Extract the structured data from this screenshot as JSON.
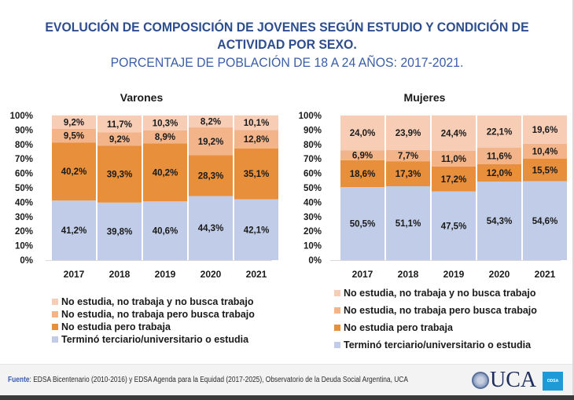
{
  "title": {
    "line1": "EVOLUCIÓN DE COMPOSICIÓN DE JOVENES SEGÚN ESTUDIO Y CONDICIÓN DE",
    "line2": "ACTIVIDAD POR SEXO.",
    "subtitle": "PORCENTAJE DE POBLACIÓN DE 18 A 24 AÑOS: 2017-2021."
  },
  "colors": {
    "estudia": "#c1cde8",
    "trabaja": "#e88f3c",
    "busca": "#f3b48a",
    "no_busca": "#f7cdb6"
  },
  "chart_data": [
    {
      "type": "bar",
      "stacked": true,
      "title": "Varones",
      "categories": [
        "2017",
        "2018",
        "2019",
        "2020",
        "2021"
      ],
      "ylim": [
        0,
        100
      ],
      "yticks": [
        "0%",
        "10%",
        "20%",
        "30%",
        "40%",
        "50%",
        "60%",
        "70%",
        "80%",
        "90%",
        "100%"
      ],
      "xlabel": "",
      "ylabel": "",
      "legend_position": "bottom",
      "series": [
        {
          "name": "Terminó terciario/universitario o estudia",
          "color_key": "estudia",
          "values": [
            41.2,
            39.8,
            40.6,
            44.3,
            42.1
          ],
          "labels": [
            "41,2%",
            "39,8%",
            "40,6%",
            "44,3%",
            "42,1%"
          ]
        },
        {
          "name": "No estudia pero trabaja",
          "color_key": "trabaja",
          "values": [
            40.2,
            39.3,
            40.2,
            28.3,
            35.1
          ],
          "labels": [
            "40,2%",
            "39,3%",
            "40,2%",
            "28,3%",
            "35,1%"
          ]
        },
        {
          "name": "No estudia, no trabaja pero busca trabajo",
          "color_key": "busca",
          "values": [
            9.5,
            9.2,
            8.9,
            19.2,
            12.8
          ],
          "labels": [
            "9,5%",
            "9,2%",
            "8,9%",
            "19,2%",
            "12,8%"
          ]
        },
        {
          "name": "No estudia, no trabaja y no busca trabajo",
          "color_key": "no_busca",
          "values": [
            9.2,
            11.7,
            10.3,
            8.2,
            10.1
          ],
          "labels": [
            "9,2%",
            "11,7%",
            "10,3%",
            "8,2%",
            "10,1%"
          ]
        }
      ]
    },
    {
      "type": "bar",
      "stacked": true,
      "title": "Mujeres",
      "categories": [
        "2017",
        "2018",
        "2019",
        "2020",
        "2021"
      ],
      "ylim": [
        0,
        100
      ],
      "yticks": [
        "0%",
        "10%",
        "20%",
        "30%",
        "40%",
        "50%",
        "60%",
        "70%",
        "80%",
        "90%",
        "100%"
      ],
      "xlabel": "",
      "ylabel": "",
      "legend_position": "bottom",
      "series": [
        {
          "name": "Terminó terciario/universitario o estudia",
          "color_key": "estudia",
          "values": [
            50.5,
            51.1,
            47.5,
            54.3,
            54.6
          ],
          "labels": [
            "50,5%",
            "51,1%",
            "47,5%",
            "54,3%",
            "54,6%"
          ]
        },
        {
          "name": "No estudia pero trabaja",
          "color_key": "trabaja",
          "values": [
            18.6,
            17.3,
            17.2,
            12.0,
            15.5
          ],
          "labels": [
            "18,6%",
            "17,3%",
            "17,2%",
            "12,0%",
            "15,5%"
          ]
        },
        {
          "name": "No estudia, no trabaja pero busca trabajo",
          "color_key": "busca",
          "values": [
            6.9,
            7.7,
            11.0,
            11.6,
            10.4
          ],
          "labels": [
            "6,9%",
            "7,7%",
            "11,0%",
            "11,6%",
            "10,4%"
          ]
        },
        {
          "name": "No estudia, no trabaja y no busca trabajo",
          "color_key": "no_busca",
          "values": [
            24.0,
            23.9,
            24.4,
            22.1,
            19.6
          ],
          "labels": [
            "24,0%",
            "23,9%",
            "24,4%",
            "22,1%",
            "19,6%"
          ]
        }
      ]
    }
  ],
  "legend": [
    {
      "label": "No estudia, no trabaja y no busca trabajo",
      "color_key": "no_busca"
    },
    {
      "label": "No estudia, no trabaja pero busca trabajo",
      "color_key": "busca"
    },
    {
      "label": "No estudia pero trabaja",
      "color_key": "trabaja"
    },
    {
      "label": "Terminó terciario/universitario o estudia",
      "color_key": "estudia"
    }
  ],
  "footer": {
    "source_label": "Fuente",
    "source_text": ": EDSA Bicentenario (2010-2016) y EDSA Agenda para la Equidad (2017-2025), Observatorio de la Deuda Social Argentina, UCA",
    "logo_uca": "UCA",
    "logo_odsa": "ODSA"
  }
}
